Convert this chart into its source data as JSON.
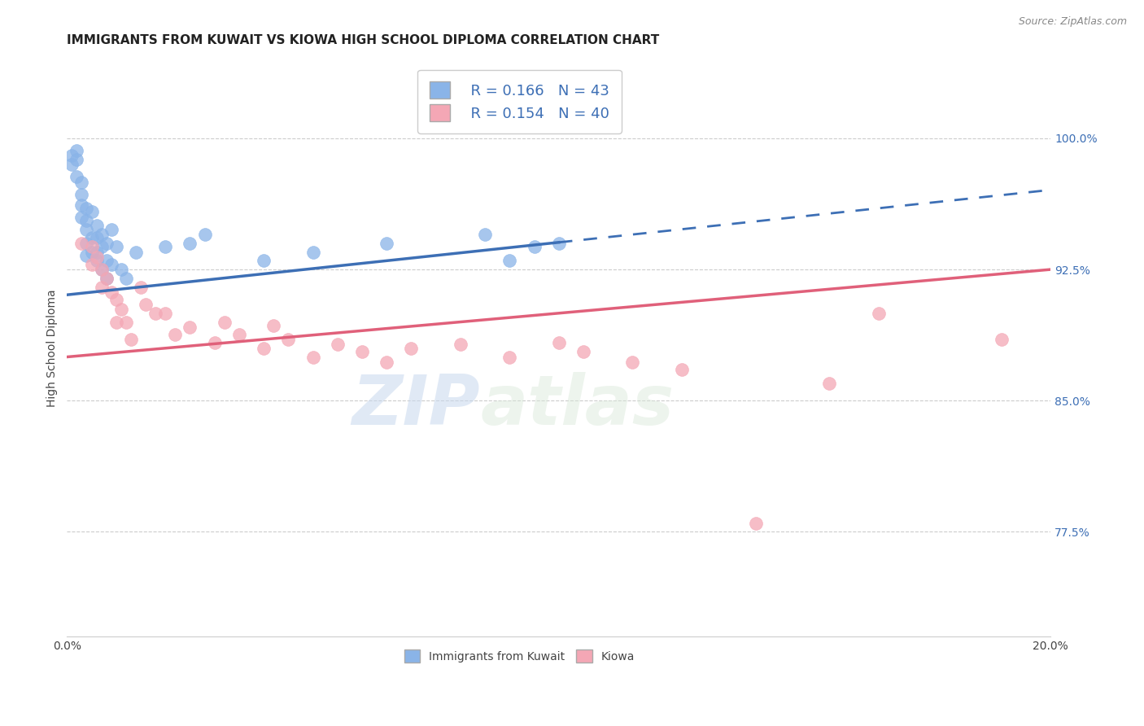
{
  "title": "IMMIGRANTS FROM KUWAIT VS KIOWA HIGH SCHOOL DIPLOMA CORRELATION CHART",
  "source": "Source: ZipAtlas.com",
  "ylabel": "High School Diploma",
  "xlim": [
    0.0,
    0.2
  ],
  "ylim": [
    0.715,
    1.045
  ],
  "right_yticks": [
    0.775,
    0.85,
    0.925,
    1.0
  ],
  "right_yticklabels": [
    "77.5%",
    "85.0%",
    "92.5%",
    "100.0%"
  ],
  "watermark_zip": "ZIP",
  "watermark_atlas": "atlas",
  "legend_r1": "R = 0.166",
  "legend_n1": "N = 43",
  "legend_r2": "R = 0.154",
  "legend_n2": "N = 40",
  "blue_color": "#8ab4e8",
  "pink_color": "#f4a7b5",
  "blue_line_color": "#3d6fb5",
  "pink_line_color": "#e0607a",
  "blue_x": [
    0.001,
    0.001,
    0.002,
    0.002,
    0.002,
    0.003,
    0.003,
    0.003,
    0.003,
    0.004,
    0.004,
    0.004,
    0.004,
    0.004,
    0.005,
    0.005,
    0.005,
    0.006,
    0.006,
    0.006,
    0.006,
    0.007,
    0.007,
    0.007,
    0.008,
    0.008,
    0.008,
    0.009,
    0.009,
    0.01,
    0.011,
    0.012,
    0.014,
    0.02,
    0.025,
    0.028,
    0.04,
    0.05,
    0.065,
    0.085,
    0.09,
    0.095,
    0.1
  ],
  "blue_y": [
    0.99,
    0.985,
    0.993,
    0.988,
    0.978,
    0.975,
    0.968,
    0.962,
    0.955,
    0.96,
    0.953,
    0.948,
    0.94,
    0.933,
    0.958,
    0.943,
    0.935,
    0.95,
    0.943,
    0.935,
    0.93,
    0.945,
    0.938,
    0.925,
    0.94,
    0.93,
    0.92,
    0.948,
    0.928,
    0.938,
    0.925,
    0.92,
    0.935,
    0.938,
    0.94,
    0.945,
    0.93,
    0.935,
    0.94,
    0.945,
    0.93,
    0.938,
    0.94
  ],
  "pink_x": [
    0.003,
    0.005,
    0.005,
    0.006,
    0.007,
    0.007,
    0.008,
    0.009,
    0.01,
    0.01,
    0.011,
    0.012,
    0.013,
    0.015,
    0.016,
    0.018,
    0.02,
    0.022,
    0.025,
    0.03,
    0.032,
    0.035,
    0.04,
    0.042,
    0.045,
    0.05,
    0.055,
    0.06,
    0.065,
    0.07,
    0.08,
    0.09,
    0.1,
    0.105,
    0.115,
    0.125,
    0.14,
    0.155,
    0.165,
    0.19
  ],
  "pink_y": [
    0.94,
    0.938,
    0.928,
    0.932,
    0.925,
    0.915,
    0.92,
    0.912,
    0.908,
    0.895,
    0.902,
    0.895,
    0.885,
    0.915,
    0.905,
    0.9,
    0.9,
    0.888,
    0.892,
    0.883,
    0.895,
    0.888,
    0.88,
    0.893,
    0.885,
    0.875,
    0.882,
    0.878,
    0.872,
    0.88,
    0.882,
    0.875,
    0.883,
    0.878,
    0.872,
    0.868,
    0.78,
    0.86,
    0.9,
    0.885
  ],
  "blue_trend": [
    0.0,
    0.1,
    0.2
  ],
  "blue_trend_y": [
    0.9105,
    0.9405,
    0.9705
  ],
  "pink_trend_y": [
    0.875,
    0.8875,
    0.925
  ],
  "title_fontsize": 11,
  "axis_label_fontsize": 10,
  "tick_fontsize": 10,
  "legend_fontsize": 13
}
